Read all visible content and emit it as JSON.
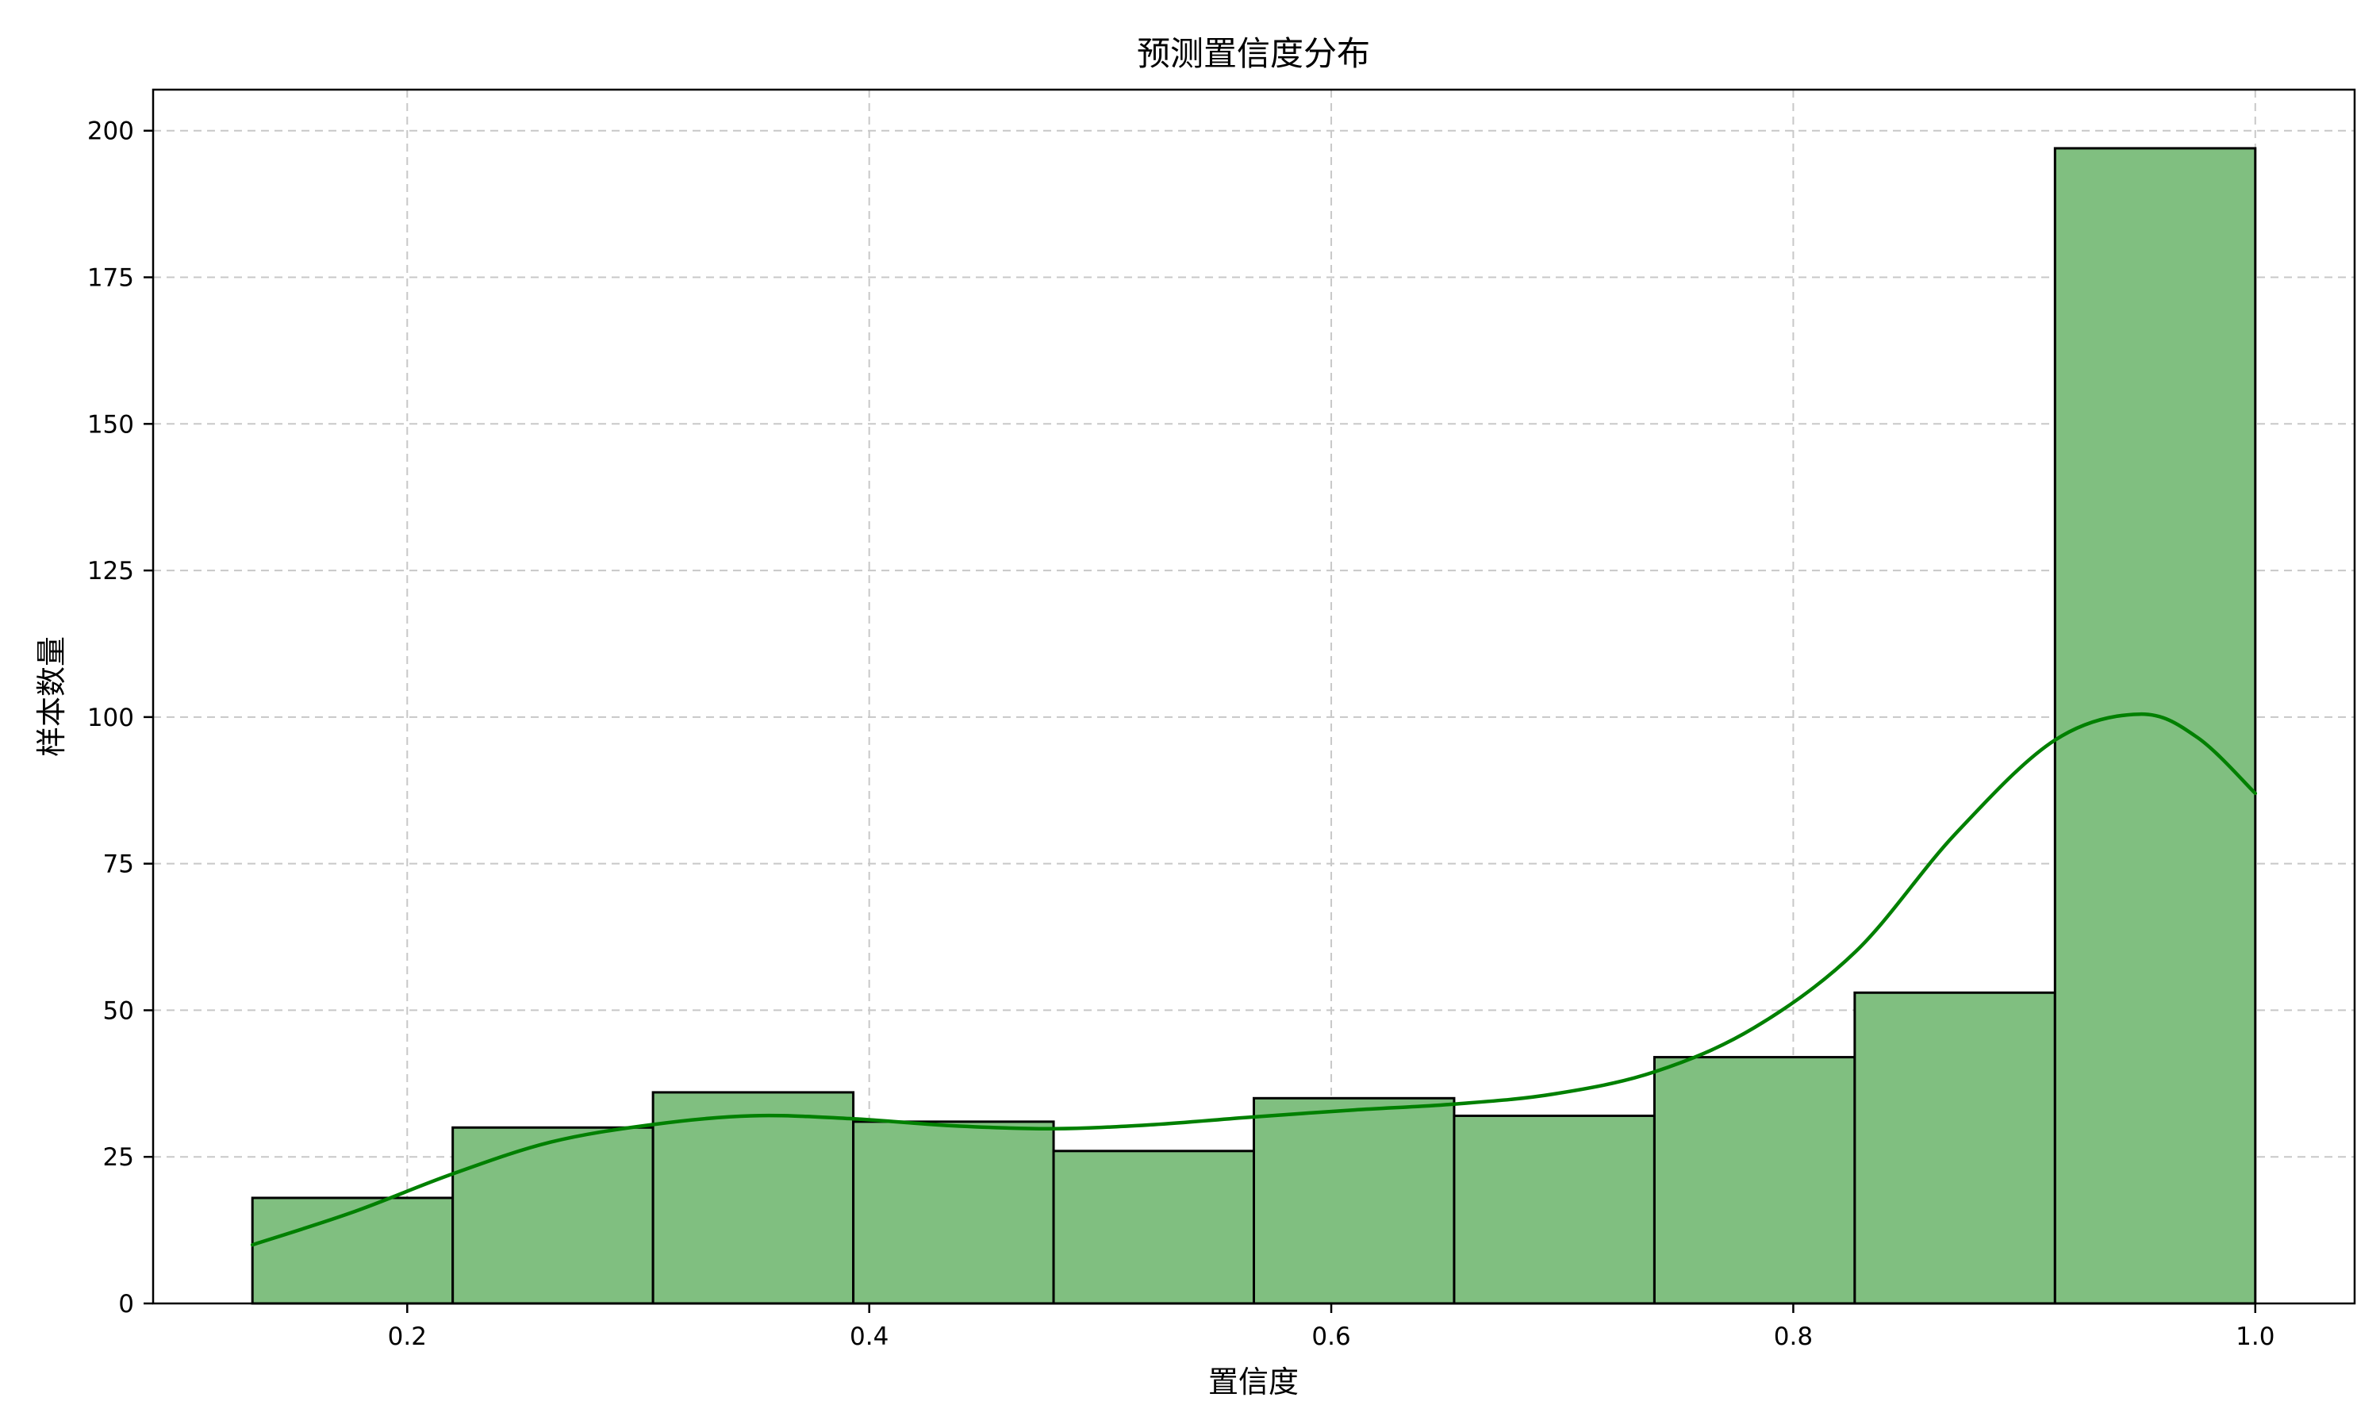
{
  "chart_data": {
    "type": "histogram",
    "title": "预测置信度分布",
    "xlabel": "置信度",
    "ylabel": "样本数量",
    "xlim": [
      0.09,
      1.043
    ],
    "ylim": [
      0,
      207
    ],
    "xticks": [
      0.2,
      0.4,
      0.6,
      0.8,
      1.0
    ],
    "xtick_labels": [
      "0.2",
      "0.4",
      "0.6",
      "0.8",
      "1.0"
    ],
    "yticks": [
      0,
      25,
      50,
      75,
      100,
      125,
      150,
      175,
      200
    ],
    "ytick_labels": [
      "0",
      "25",
      "50",
      "75",
      "100",
      "125",
      "150",
      "175",
      "200"
    ],
    "grid": true,
    "bins": [
      {
        "x0": 0.133,
        "x1": 0.2197,
        "count": 18
      },
      {
        "x0": 0.2197,
        "x1": 0.3064,
        "count": 30
      },
      {
        "x0": 0.3064,
        "x1": 0.3931,
        "count": 36
      },
      {
        "x0": 0.3931,
        "x1": 0.4798,
        "count": 31
      },
      {
        "x0": 0.4798,
        "x1": 0.5665,
        "count": 26
      },
      {
        "x0": 0.5665,
        "x1": 0.6532,
        "count": 35
      },
      {
        "x0": 0.6532,
        "x1": 0.7399,
        "count": 32
      },
      {
        "x0": 0.7399,
        "x1": 0.8266,
        "count": 42
      },
      {
        "x0": 0.8266,
        "x1": 0.9133,
        "count": 53
      },
      {
        "x0": 0.9133,
        "x1": 1.0,
        "count": 197
      }
    ],
    "kde": {
      "x": [
        0.133,
        0.176,
        0.219,
        0.262,
        0.306,
        0.349,
        0.393,
        0.436,
        0.48,
        0.523,
        0.566,
        0.61,
        0.653,
        0.696,
        0.74,
        0.783,
        0.827,
        0.87,
        0.913,
        0.95,
        0.975,
        1.0
      ],
      "y": [
        10,
        15.5,
        22,
        27.5,
        30.5,
        32,
        31.5,
        30.3,
        29.8,
        30.5,
        31.8,
        33,
        34,
        35.7,
        39.5,
        47,
        60,
        80,
        96,
        100.5,
        96.5,
        87
      ]
    },
    "colors": {
      "bar_fill": "#80bf80",
      "bar_edge": "#000000",
      "kde_line": "#008000",
      "grid": "#c8c8c8"
    }
  }
}
